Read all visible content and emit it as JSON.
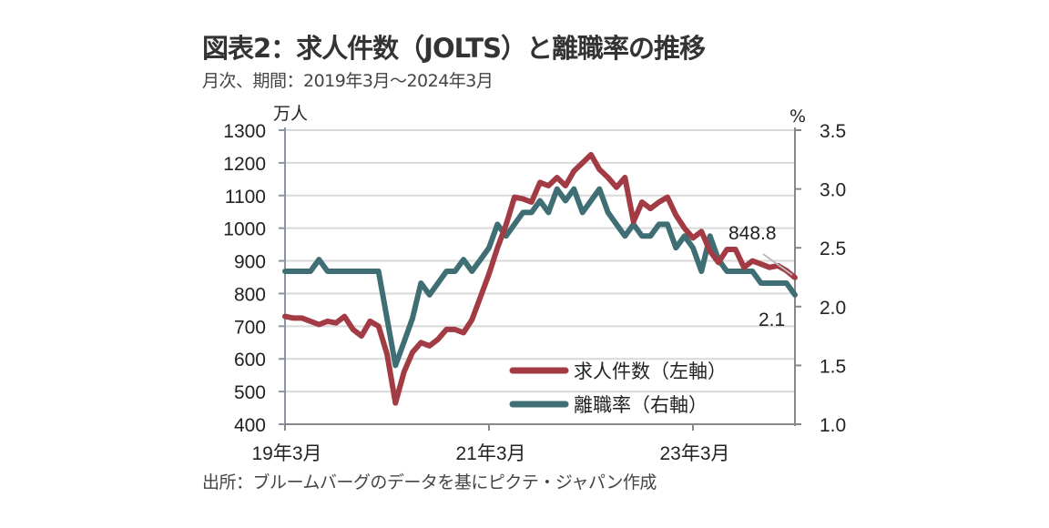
{
  "header": {
    "title": "図表2：求人件数（JOLTS）と離職率の推移",
    "subtitle": "月次、期間：2019年3月～2024年3月"
  },
  "footer": {
    "source": "出所：ブルームバーグのデータを基にピクテ・ジャパン作成"
  },
  "colors": {
    "openings": "#a33b45",
    "quits": "#3f6f74",
    "grid": "#d9d9d9",
    "axis": "#8c96a3",
    "trend": "#b9b9b9"
  },
  "chart_data": {
    "type": "line",
    "title": "図表2：求人件数（JOLTS）と離職率の推移",
    "subtitle": "月次、期間：2019年3月～2024年3月",
    "x_start": "2019-03",
    "x_end": "2024-03",
    "x_ticks": [
      {
        "index": 0,
        "label": "19年3月"
      },
      {
        "index": 24,
        "label": "21年3月"
      },
      {
        "index": 48,
        "label": "23年3月"
      }
    ],
    "y_left": {
      "label": "万人",
      "range": [
        400,
        1300
      ],
      "ticks": [
        1300,
        1200,
        1100,
        1000,
        900,
        800,
        700,
        600,
        500,
        400
      ]
    },
    "y_right": {
      "label": "%",
      "range": [
        1.0,
        3.5
      ],
      "ticks": [
        "3.5",
        "3.0",
        "2.5",
        "2.0",
        "1.5",
        "1.0"
      ]
    },
    "grid": true,
    "legend_position": "bottom-right",
    "series": [
      {
        "name": "求人件数（左軸）",
        "axis": "left",
        "values": [
          730,
          725,
          725,
          715,
          705,
          715,
          710,
          730,
          690,
          670,
          715,
          700,
          615,
          465,
          560,
          620,
          650,
          640,
          660,
          690,
          690,
          680,
          720,
          790,
          860,
          940,
          1010,
          1095,
          1090,
          1080,
          1140,
          1130,
          1155,
          1130,
          1175,
          1200,
          1225,
          1180,
          1155,
          1125,
          1155,
          1020,
          1080,
          1060,
          1080,
          1095,
          1040,
          1000,
          970,
          990,
          930,
          895,
          935,
          935,
          880,
          900,
          890,
          880,
          885,
          870,
          849
        ],
        "last_label": "848.8"
      },
      {
        "name": "離職率（右軸）",
        "axis": "right",
        "values": [
          2.3,
          2.3,
          2.3,
          2.3,
          2.4,
          2.3,
          2.3,
          2.3,
          2.3,
          2.3,
          2.3,
          2.3,
          1.9,
          1.5,
          1.7,
          1.9,
          2.2,
          2.1,
          2.2,
          2.3,
          2.3,
          2.4,
          2.3,
          2.4,
          2.5,
          2.7,
          2.6,
          2.7,
          2.8,
          2.8,
          2.9,
          2.8,
          3.0,
          2.9,
          3.0,
          2.8,
          2.9,
          3.0,
          2.8,
          2.7,
          2.6,
          2.7,
          2.6,
          2.6,
          2.7,
          2.7,
          2.5,
          2.6,
          2.5,
          2.3,
          2.6,
          2.4,
          2.3,
          2.3,
          2.3,
          2.3,
          2.2,
          2.2,
          2.2,
          2.2,
          2.1
        ],
        "last_label": "2.1"
      }
    ],
    "annotations": [
      "848.8",
      "2.1"
    ]
  }
}
